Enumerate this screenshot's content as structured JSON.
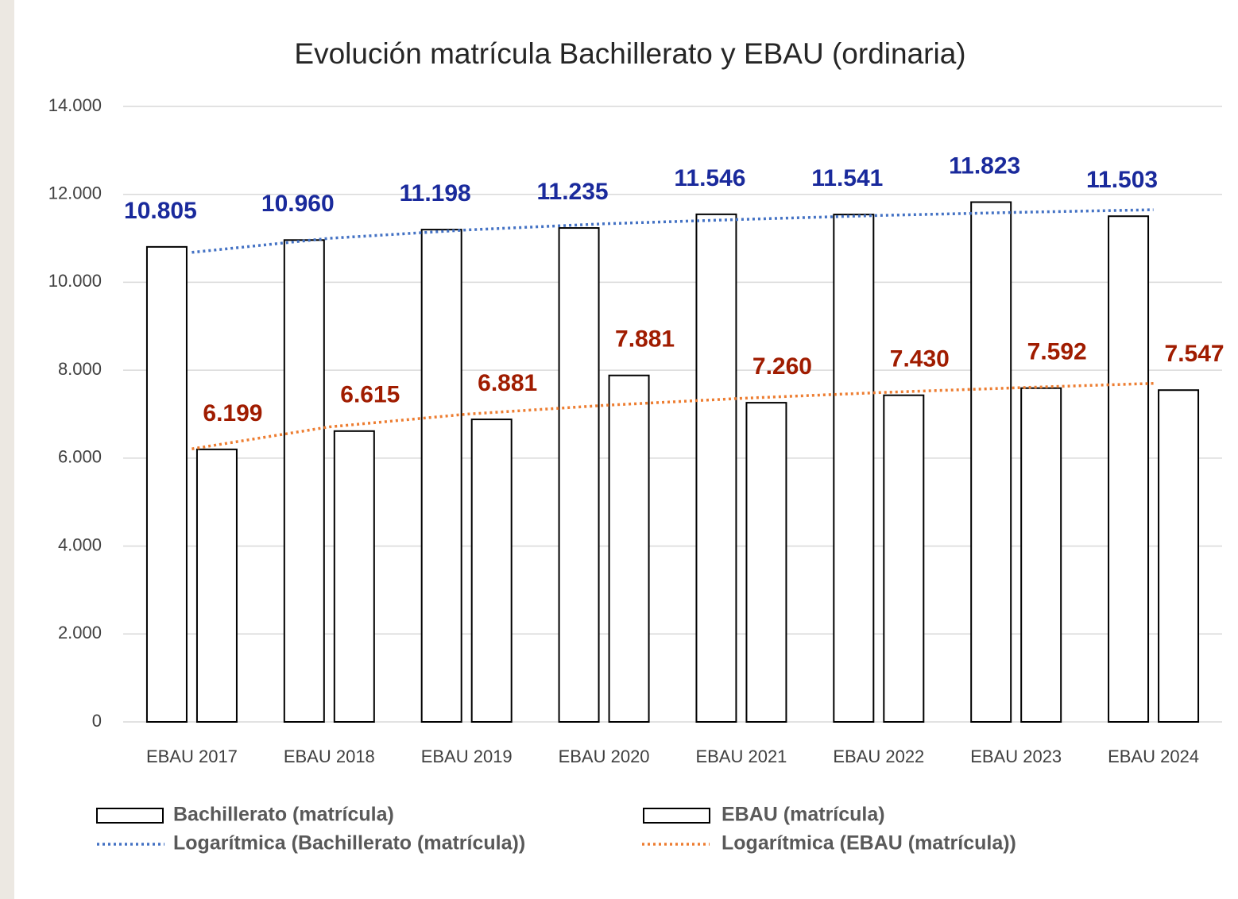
{
  "chart_data": {
    "type": "bar",
    "title": "Evolución matrícula Bachillerato y EBAU (ordinaria)",
    "categories": [
      "EBAU 2017",
      "EBAU 2018",
      "EBAU 2019",
      "EBAU 2020",
      "EBAU 2021",
      "EBAU 2022",
      "EBAU 2023",
      "EBAU 2024"
    ],
    "series": [
      {
        "name": "Bachillerato (matrícula)",
        "color": "#ffffff",
        "label_color": "#1a2a9c",
        "values": [
          10805,
          10960,
          11198,
          11235,
          11546,
          11541,
          11823,
          11503
        ],
        "value_labels": [
          "10.805",
          "10.960",
          "11.198",
          "11.235",
          "11.546",
          "11.541",
          "11.823",
          "11.503"
        ]
      },
      {
        "name": "EBAU (matrícula)",
        "color": "#ffffff",
        "label_color": "#a01c00",
        "values": [
          6199,
          6615,
          6881,
          7881,
          7260,
          7430,
          7592,
          7547
        ],
        "value_labels": [
          "6.199",
          "6.615",
          "6.881",
          "7.881",
          "7.260",
          "7.430",
          "7.592",
          "7.547"
        ]
      }
    ],
    "trendlines": [
      {
        "name": "Logarítmica (Bachillerato (matrícula))",
        "color": "#4472c4",
        "values": [
          10680,
          11000,
          11190,
          11330,
          11430,
          11520,
          11590,
          11650
        ]
      },
      {
        "name": "Logarítmica (EBAU (matrícula))",
        "color": "#ed7d31",
        "values": [
          6210,
          6710,
          7000,
          7200,
          7360,
          7490,
          7600,
          7700
        ]
      }
    ],
    "ylim": [
      0,
      14000
    ],
    "yticks": [
      0,
      {
        "value": 2000,
        "label": "2.000"
      },
      {
        "value": 4000,
        "label": "4.000"
      },
      {
        "value": 6000,
        "label": "6.000"
      },
      {
        "value": 8000,
        "label": "8.000"
      },
      {
        "value": 10000,
        "label": "10.000"
      },
      {
        "value": 12000,
        "label": "12.000"
      },
      {
        "value": 14000,
        "label": "14.000"
      }
    ],
    "grid": true
  }
}
